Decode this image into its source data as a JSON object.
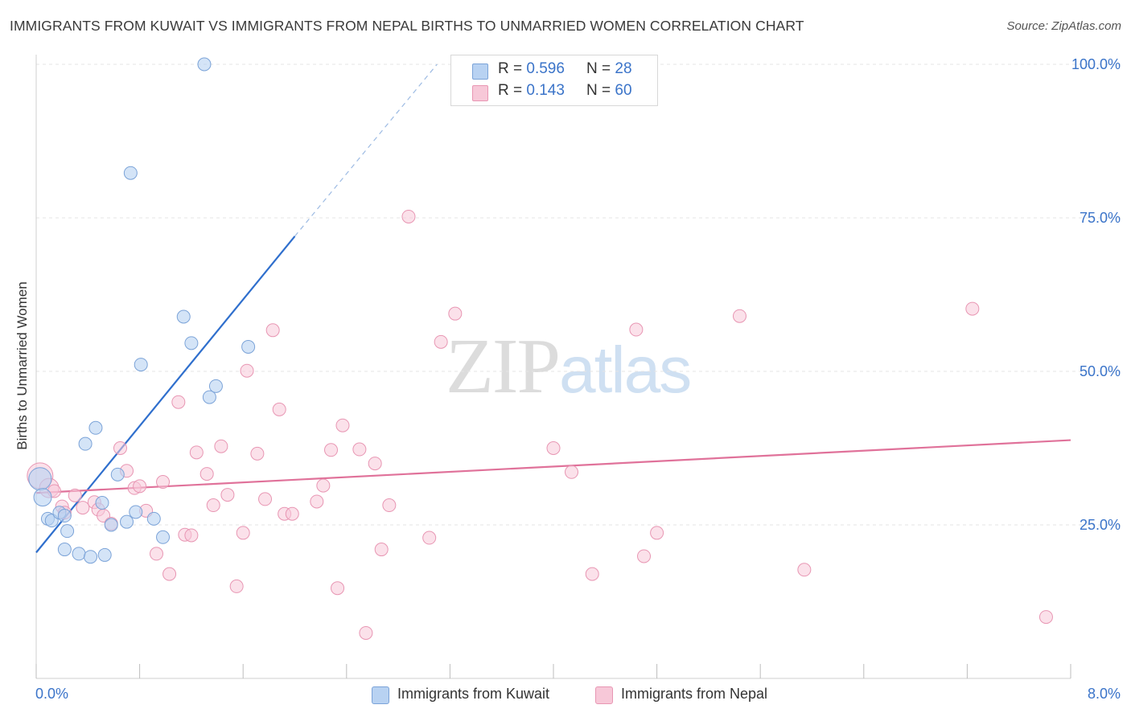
{
  "title": "IMMIGRANTS FROM KUWAIT VS IMMIGRANTS FROM NEPAL BIRTHS TO UNMARRIED WOMEN CORRELATION CHART",
  "source": "Source: ZipAtlas.com",
  "watermark": {
    "part1": "ZIP",
    "part2": "atlas"
  },
  "legend": {
    "kuwait": {
      "r_label": "R =",
      "r_value": "0.596",
      "n_label": "N =",
      "n_value": "28"
    },
    "nepal": {
      "r_label": "R =",
      "r_value": "0.143",
      "n_label": "N =",
      "n_value": "60"
    }
  },
  "bottom_legend": {
    "kuwait": "Immigrants from Kuwait",
    "nepal": "Immigrants from Nepal"
  },
  "colors": {
    "kuwait_fill": "#b8d2f2",
    "kuwait_stroke": "#7ba3d8",
    "kuwait_line": "#2f6fcd",
    "nepal_fill": "#f7c8d8",
    "nepal_stroke": "#e896b3",
    "nepal_line": "#e0729a",
    "tick_label": "#3b74c9",
    "grid": "#e4e4e4"
  },
  "chart_data": {
    "type": "scatter",
    "title": "IMMIGRANTS FROM KUWAIT VS IMMIGRANTS FROM NEPAL BIRTHS TO UNMARRIED WOMEN CORRELATION CHART",
    "xlabel": "",
    "ylabel": "Births to Unmarried Women",
    "xlim": [
      0,
      8
    ],
    "ylim": [
      0,
      102
    ],
    "x_tick_labels": [
      "0.0%",
      "8.0%"
    ],
    "y_ticks": [
      25,
      50,
      75,
      100
    ],
    "y_tick_labels": [
      "25.0%",
      "50.0%",
      "75.0%",
      "100.0%"
    ],
    "grid": true,
    "legend_position": "top-center",
    "series": [
      {
        "name": "Immigrants from Kuwait",
        "points": [
          [
            0.03,
            32.5
          ],
          [
            0.05,
            29.5
          ],
          [
            0.09,
            26
          ],
          [
            0.12,
            25.7
          ],
          [
            0.18,
            27
          ],
          [
            0.22,
            26.5
          ],
          [
            0.24,
            24
          ],
          [
            0.22,
            21
          ],
          [
            0.33,
            20.3
          ],
          [
            0.42,
            19.8
          ],
          [
            0.53,
            20.1
          ],
          [
            0.38,
            38.2
          ],
          [
            0.46,
            40.8
          ],
          [
            0.51,
            28.6
          ],
          [
            0.58,
            25
          ],
          [
            0.63,
            33.2
          ],
          [
            0.7,
            25.5
          ],
          [
            0.77,
            27.1
          ],
          [
            0.81,
            51.1
          ],
          [
            0.91,
            26
          ],
          [
            0.98,
            23
          ],
          [
            1.14,
            58.9
          ],
          [
            1.2,
            54.6
          ],
          [
            1.34,
            45.8
          ],
          [
            1.39,
            47.6
          ],
          [
            1.64,
            54
          ],
          [
            0.73,
            82.3
          ],
          [
            1.3,
            100
          ]
        ],
        "trend": {
          "x": [
            0,
            2.0
          ],
          "y": [
            20.5,
            72
          ],
          "dashed_extension": {
            "x": [
              2.0,
              3.1
            ],
            "y": [
              72,
              100
            ]
          }
        }
      },
      {
        "name": "Immigrants from Nepal",
        "points": [
          [
            0.03,
            33
          ],
          [
            0.1,
            31
          ],
          [
            0.14,
            30.5
          ],
          [
            0.2,
            28
          ],
          [
            0.22,
            27
          ],
          [
            0.3,
            29.8
          ],
          [
            0.36,
            27.8
          ],
          [
            0.45,
            28.7
          ],
          [
            0.48,
            27.5
          ],
          [
            0.52,
            26.5
          ],
          [
            0.58,
            25.2
          ],
          [
            0.65,
            37.5
          ],
          [
            0.7,
            33.8
          ],
          [
            0.76,
            31
          ],
          [
            0.8,
            31.3
          ],
          [
            0.85,
            27.3
          ],
          [
            0.93,
            20.3
          ],
          [
            0.98,
            32
          ],
          [
            1.03,
            17
          ],
          [
            1.1,
            45
          ],
          [
            1.15,
            23.4
          ],
          [
            1.2,
            23.3
          ],
          [
            1.24,
            36.8
          ],
          [
            1.32,
            33.3
          ],
          [
            1.37,
            28.2
          ],
          [
            1.43,
            37.8
          ],
          [
            1.48,
            29.9
          ],
          [
            1.55,
            15
          ],
          [
            1.6,
            23.7
          ],
          [
            1.63,
            50.1
          ],
          [
            1.71,
            36.6
          ],
          [
            1.77,
            29.2
          ],
          [
            1.83,
            56.7
          ],
          [
            1.88,
            43.8
          ],
          [
            1.92,
            26.8
          ],
          [
            1.98,
            26.8
          ],
          [
            2.17,
            28.8
          ],
          [
            2.22,
            31.4
          ],
          [
            2.28,
            37.2
          ],
          [
            2.33,
            14.7
          ],
          [
            2.37,
            41.2
          ],
          [
            2.5,
            37.3
          ],
          [
            2.55,
            7.4
          ],
          [
            2.62,
            35
          ],
          [
            2.67,
            21
          ],
          [
            2.73,
            28.2
          ],
          [
            2.88,
            75.2
          ],
          [
            3.04,
            22.9
          ],
          [
            3.13,
            54.8
          ],
          [
            3.24,
            59.4
          ],
          [
            4.0,
            37.5
          ],
          [
            4.14,
            33.6
          ],
          [
            4.3,
            17
          ],
          [
            4.64,
            56.8
          ],
          [
            4.7,
            19.9
          ],
          [
            4.8,
            23.7
          ],
          [
            5.44,
            59
          ],
          [
            5.94,
            17.7
          ],
          [
            7.24,
            60.2
          ],
          [
            7.81,
            10
          ]
        ],
        "trend": {
          "x": [
            0,
            8.0
          ],
          "y": [
            30.2,
            38.8
          ]
        }
      }
    ]
  }
}
